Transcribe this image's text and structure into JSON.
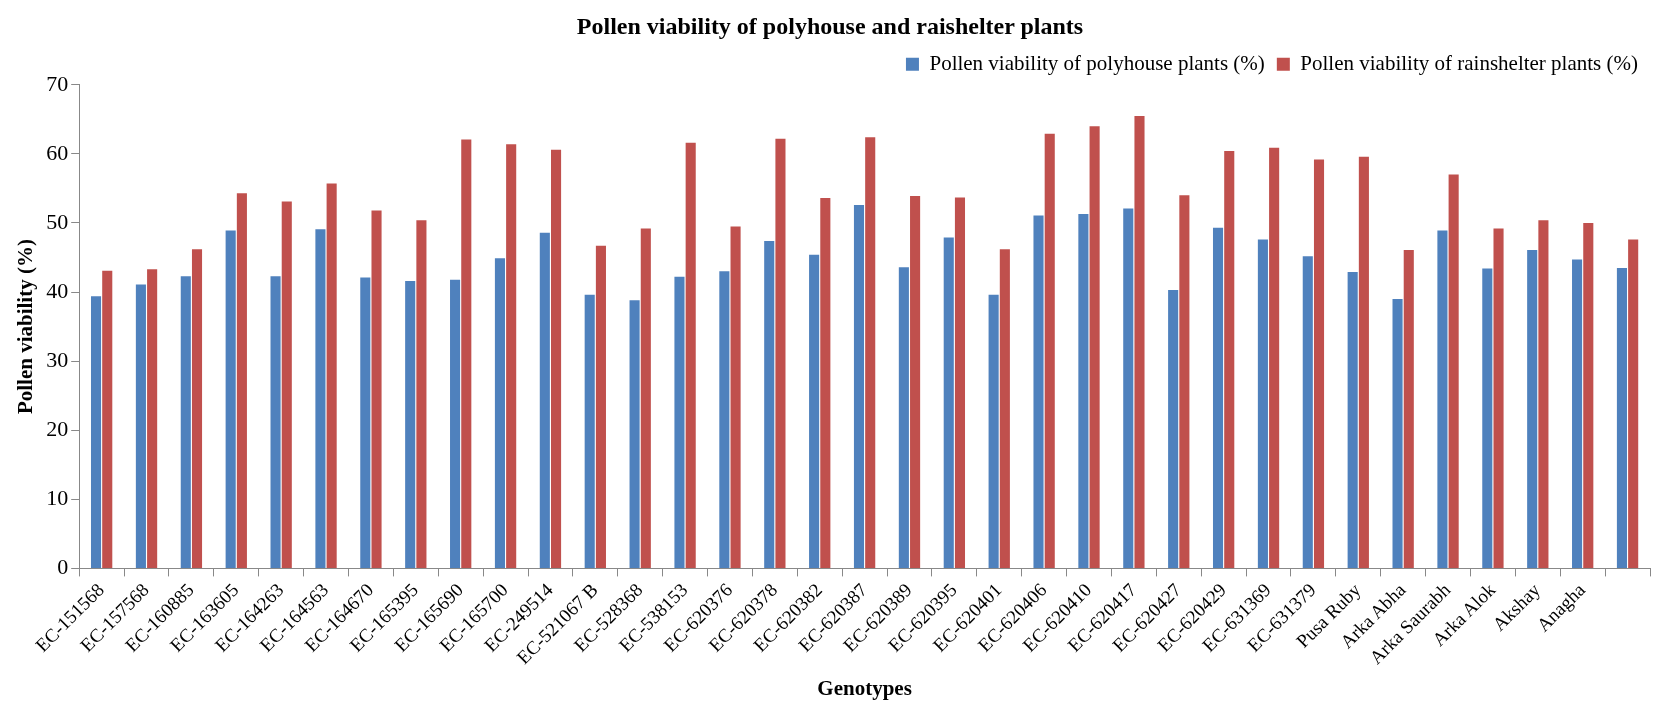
{
  "chart_data": {
    "type": "bar",
    "title": "Pollen viability of polyhouse and raishelter plants",
    "xlabel": "Genotypes",
    "ylabel": "Pollen viability (%)",
    "categories": [
      "EC-151568",
      "EC-157568",
      "EC-160885",
      "EC-163605",
      "EC-164263",
      "EC-164563",
      "EC-164670",
      "EC-165395",
      "EC-165690",
      "EC-165700",
      "EC-249514",
      "EC-521067 B",
      "EC-528368",
      "EC-538153",
      "EC-620376",
      "EC-620378",
      "EC-620382",
      "EC-620387",
      "EC-620389",
      "EC-620395",
      "EC-620401",
      "EC-620406",
      "EC-620410",
      "EC-620417",
      "EC-620427",
      "EC-620429",
      "EC-631369",
      "EC-631379",
      "Pusa Ruby",
      "Arka Abha",
      "Arka Saurabh",
      "Arka Alok",
      "Akshay",
      "Anagha",
      null
    ],
    "series": [
      {
        "name": "Pollen viability of polyhouse plants (%)",
        "color": "#4f81bd",
        "values": [
          39.4,
          41.1,
          42.3,
          48.9,
          42.3,
          49.1,
          42.1,
          41.6,
          41.8,
          44.9,
          48.6,
          39.6,
          38.8,
          42.2,
          43.0,
          47.4,
          45.4,
          52.6,
          43.6,
          47.9,
          39.6,
          51.1,
          51.3,
          52.1,
          40.3,
          49.3,
          47.6,
          45.2,
          42.9,
          39.0,
          48.9,
          43.4,
          46.1,
          44.7,
          43.5
        ]
      },
      {
        "name": "Pollen viability of rainshelter plants (%)",
        "color": "#c0504d",
        "values": [
          43.1,
          43.3,
          46.2,
          54.3,
          53.1,
          55.7,
          51.8,
          50.4,
          62.1,
          61.4,
          60.6,
          46.7,
          49.2,
          61.6,
          49.5,
          62.2,
          53.6,
          62.4,
          53.9,
          53.7,
          46.2,
          62.9,
          64.0,
          65.5,
          54.0,
          60.4,
          60.9,
          59.2,
          59.6,
          46.1,
          57.0,
          49.2,
          50.4,
          50.0,
          47.6
        ]
      }
    ],
    "ylim": [
      0,
      70
    ],
    "yticks": [
      0,
      10,
      20,
      30,
      40,
      50,
      60,
      70
    ],
    "grid": false,
    "legend": "top right"
  }
}
